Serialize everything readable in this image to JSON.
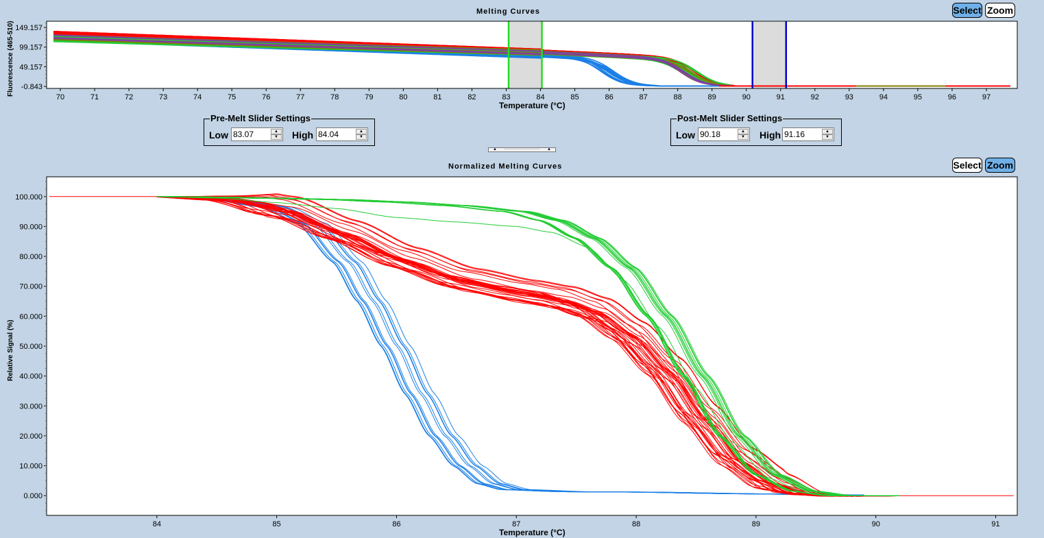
{
  "top_panel": {
    "title": "Melting Curves",
    "ylabel": "Fluorescence (465-510)",
    "xlabel": "Temperature (°C)",
    "select_label": "Select",
    "zoom_label": "Zoom",
    "active_mode": "select"
  },
  "pre_melt": {
    "legend": "Pre-Melt Slider Settings",
    "low_label": "Low",
    "low_value": "83.07",
    "high_label": "High",
    "high_value": "84.04",
    "color": "#22dd22"
  },
  "post_melt": {
    "legend": "Post-Melt Slider Settings",
    "low_label": "Low",
    "low_value": "90.18",
    "high_label": "High",
    "high_value": "91.16",
    "color": "#0000cc"
  },
  "splitter": {
    "icon": "splitter-grip-icon"
  },
  "bottom_panel": {
    "title": "Normalized Melting Curves",
    "ylabel": "Relative Signal (%)",
    "xlabel": "Temperature (°C)",
    "select_label": "Select",
    "zoom_label": "Zoom",
    "active_mode": "zoom"
  },
  "chart_data": [
    {
      "type": "line",
      "title": "Melting Curves",
      "xlabel": "Temperature (°C)",
      "ylabel": "Fluorescence (465-510)",
      "xlim": [
        69.6,
        97.9
      ],
      "ylim": [
        -6,
        165
      ],
      "xticks": [
        70,
        71,
        72,
        73,
        74,
        75,
        76,
        77,
        78,
        79,
        80,
        81,
        82,
        83,
        84,
        85,
        86,
        87,
        88,
        89,
        90,
        91,
        92,
        93,
        94,
        95,
        96,
        97
      ],
      "yticks": [
        149.157,
        99.157,
        49.157,
        -0.843
      ],
      "ytick_labels": [
        "149.157",
        "99.157",
        "49.157",
        "-0.843"
      ],
      "grid": false,
      "pre_melt_region": [
        83.07,
        84.04
      ],
      "post_melt_region": [
        90.18,
        91.16
      ],
      "series": [
        {
          "name": "group-blue",
          "color": "#1a7fe6",
          "count": 12,
          "start": [
            69.8,
            122
          ],
          "pre": [
            84.0,
            78
          ],
          "tm": 86.0,
          "end_x": 87.0,
          "baseline": 0
        },
        {
          "name": "group-red",
          "color": "#ff0000",
          "count": 30,
          "start": [
            69.8,
            133
          ],
          "pre": [
            84.0,
            88
          ],
          "tm": 88.3,
          "end_x": 89.2,
          "baseline": 0
        },
        {
          "name": "group-green",
          "color": "#22cc33",
          "count": 14,
          "start": [
            69.8,
            120
          ],
          "pre": [
            84.0,
            85
          ],
          "tm": 88.4,
          "end_x": 89.1,
          "baseline": 0
        },
        {
          "name": "group-olive",
          "color": "#808000",
          "count": 4,
          "start": [
            69.8,
            125
          ],
          "pre": [
            84.0,
            86
          ],
          "tm": 88.2,
          "end_x": 89.2,
          "baseline": 0
        },
        {
          "name": "group-purple",
          "color": "#8040a0",
          "count": 4,
          "start": [
            69.8,
            128
          ],
          "pre": [
            84.0,
            87
          ],
          "tm": 88.0,
          "end_x": 89.2,
          "baseline": 0
        }
      ]
    },
    {
      "type": "line",
      "title": "Normalized Melting Curves",
      "xlabel": "Temperature (°C)",
      "ylabel": "Relative Signal (%)",
      "xlim": [
        83.08,
        91.18
      ],
      "ylim": [
        -6.6,
        106.6
      ],
      "xticks": [
        84,
        85,
        86,
        87,
        88,
        89,
        90,
        91
      ],
      "yticks": [
        100,
        90,
        80,
        70,
        60,
        50,
        40,
        30,
        20,
        10,
        0
      ],
      "ytick_labels": [
        "100.000",
        "90.000",
        "80.000",
        "70.000",
        "60.000",
        "50.000",
        "40.000",
        "30.000",
        "20.000",
        "10.000",
        "0.000"
      ],
      "grid": false,
      "reference_line": {
        "color": "#ff0000",
        "value": 100,
        "x_from": 83.08,
        "x_to": 84.0,
        "tail_value": 0,
        "tail_from": 89.5,
        "tail_to": 91.15
      },
      "series": [
        {
          "name": "blue",
          "color": "#1a7fe6",
          "count": 12,
          "curve": [
            [
              84.0,
              100
            ],
            [
              84.5,
              99.5
            ],
            [
              85.0,
              96.5
            ],
            [
              85.3,
              91
            ],
            [
              85.6,
              78
            ],
            [
              85.8,
              65
            ],
            [
              86.0,
              50
            ],
            [
              86.2,
              34
            ],
            [
              86.4,
              20
            ],
            [
              86.6,
              10
            ],
            [
              86.8,
              4
            ],
            [
              87.0,
              2
            ],
            [
              87.5,
              1.3
            ],
            [
              88.0,
              1.2
            ],
            [
              89.0,
              0.6
            ],
            [
              89.9,
              0.2
            ]
          ],
          "spread_x": 0.14
        },
        {
          "name": "red",
          "color": "#ff0000",
          "count": 30,
          "curve": [
            [
              84.0,
              100
            ],
            [
              84.5,
              99.3
            ],
            [
              85.0,
              96
            ],
            [
              85.5,
              88
            ],
            [
              86.0,
              79
            ],
            [
              86.5,
              72
            ],
            [
              87.0,
              68
            ],
            [
              87.3,
              66
            ],
            [
              87.6,
              62
            ],
            [
              87.9,
              54
            ],
            [
              88.2,
              42
            ],
            [
              88.5,
              26
            ],
            [
              88.8,
              12
            ],
            [
              89.1,
              4
            ],
            [
              89.4,
              0.5
            ],
            [
              89.7,
              -0.2
            ],
            [
              90.2,
              0
            ]
          ],
          "spread_x": 0.18,
          "spread_y": 4
        },
        {
          "name": "green",
          "color": "#22cc33",
          "count": 16,
          "curve": [
            [
              84.0,
              100
            ],
            [
              84.5,
              99.8
            ],
            [
              85.0,
              99.4
            ],
            [
              85.5,
              99
            ],
            [
              86.0,
              98.2
            ],
            [
              86.5,
              97
            ],
            [
              87.0,
              95
            ],
            [
              87.3,
              92
            ],
            [
              87.6,
              86
            ],
            [
              87.9,
              76
            ],
            [
              88.2,
              60
            ],
            [
              88.5,
              40
            ],
            [
              88.8,
              20
            ],
            [
              89.1,
              7
            ],
            [
              89.4,
              1.5
            ],
            [
              89.7,
              0
            ],
            [
              90.2,
              0
            ]
          ],
          "spread_x": 0.12
        },
        {
          "name": "green-outlier",
          "color": "#22cc33",
          "count": 1,
          "curve": [
            [
              84.0,
              100
            ],
            [
              84.5,
              99.5
            ],
            [
              85.0,
              98
            ],
            [
              85.5,
              96
            ],
            [
              86.0,
              93
            ],
            [
              86.5,
              91.5
            ],
            [
              87.0,
              90
            ],
            [
              87.3,
              88
            ],
            [
              87.6,
              83
            ],
            [
              87.9,
              72
            ],
            [
              88.2,
              56
            ],
            [
              88.5,
              36
            ],
            [
              88.8,
              18
            ],
            [
              89.1,
              6
            ],
            [
              89.4,
              1
            ],
            [
              89.7,
              0
            ]
          ],
          "spread_x": 0
        }
      ]
    }
  ]
}
